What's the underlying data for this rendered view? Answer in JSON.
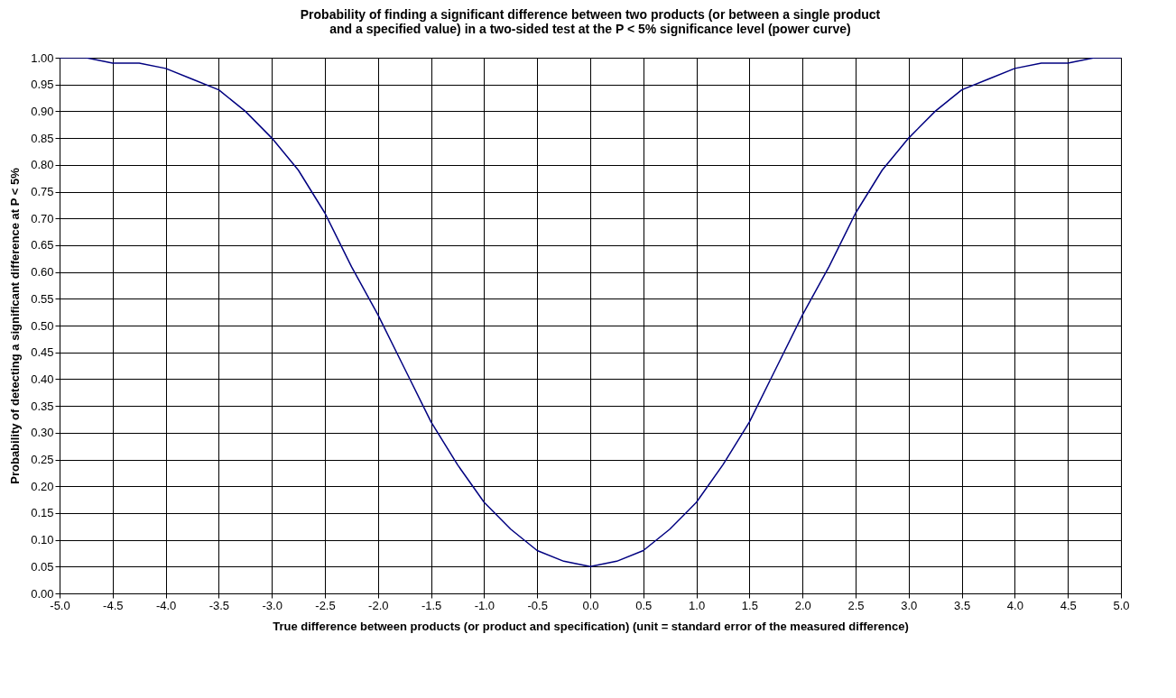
{
  "chart_data": {
    "type": "line",
    "title": "Probability of finding a significant difference between two products (or between a single product\nand a specified value) in a two-sided test at the P < 5% significance level (power curve)",
    "xlabel": "True difference between products (or product and specification) (unit = standard error of the measured difference)",
    "ylabel": "Probability of detecting a significant difference at P < 5%",
    "x": [
      -5,
      -4.75,
      -4.5,
      -4.25,
      -4,
      -3.75,
      -3.5,
      -3.25,
      -3,
      -2.75,
      -2.5,
      -2.25,
      -2,
      -1.75,
      -1.5,
      -1.25,
      -1,
      -0.75,
      -0.5,
      -0.25,
      0,
      0.25,
      0.5,
      0.75,
      1,
      1.25,
      1.5,
      1.75,
      2,
      2.25,
      2.5,
      2.75,
      3,
      3.25,
      3.5,
      3.75,
      4,
      4.25,
      4.5,
      4.75,
      5
    ],
    "series": [
      {
        "color": "#000080",
        "values": [
          1.0,
          1.0,
          0.99,
          0.99,
          0.98,
          0.96,
          0.94,
          0.9,
          0.85,
          0.79,
          0.71,
          0.61,
          0.52,
          0.42,
          0.32,
          0.24,
          0.17,
          0.12,
          0.08,
          0.06,
          0.05,
          0.06,
          0.08,
          0.12,
          0.17,
          0.24,
          0.32,
          0.42,
          0.52,
          0.61,
          0.71,
          0.79,
          0.85,
          0.9,
          0.94,
          0.96,
          0.98,
          0.99,
          0.99,
          1.0,
          1.0
        ]
      }
    ],
    "xlim": [
      -5,
      5
    ],
    "xticks": [
      {
        "value": -5,
        "label": "-5.0"
      },
      {
        "value": -4.5,
        "label": "-4.5"
      },
      {
        "value": -4,
        "label": "-4.0"
      },
      {
        "value": -3.5,
        "label": "-3.5"
      },
      {
        "value": -3,
        "label": "-3.0"
      },
      {
        "value": -2.5,
        "label": "-2.5"
      },
      {
        "value": -2,
        "label": "-2.0"
      },
      {
        "value": -1.5,
        "label": "-1.5"
      },
      {
        "value": -1,
        "label": "-1.0"
      },
      {
        "value": -0.5,
        "label": "-0.5"
      },
      {
        "value": 0,
        "label": "0.0"
      },
      {
        "value": 0.5,
        "label": "0.5"
      },
      {
        "value": 1,
        "label": "1.0"
      },
      {
        "value": 1.5,
        "label": "1.5"
      },
      {
        "value": 2,
        "label": "2.0"
      },
      {
        "value": 2.5,
        "label": "2.5"
      },
      {
        "value": 3,
        "label": "3.0"
      },
      {
        "value": 3.5,
        "label": "3.5"
      },
      {
        "value": 4,
        "label": "4.0"
      },
      {
        "value": 4.5,
        "label": "4.5"
      },
      {
        "value": 5,
        "label": "5.0"
      }
    ],
    "ylim": [
      0,
      1
    ],
    "yticks": [
      {
        "value": 0,
        "label": "0.00"
      },
      {
        "value": 0.05,
        "label": "0.05"
      },
      {
        "value": 0.1,
        "label": "0.10"
      },
      {
        "value": 0.15,
        "label": "0.15"
      },
      {
        "value": 0.2,
        "label": "0.20"
      },
      {
        "value": 0.25,
        "label": "0.25"
      },
      {
        "value": 0.3,
        "label": "0.30"
      },
      {
        "value": 0.35,
        "label": "0.35"
      },
      {
        "value": 0.4,
        "label": "0.40"
      },
      {
        "value": 0.45,
        "label": "0.45"
      },
      {
        "value": 0.5,
        "label": "0.50"
      },
      {
        "value": 0.55,
        "label": "0.55"
      },
      {
        "value": 0.6,
        "label": "0.60"
      },
      {
        "value": 0.65,
        "label": "0.65"
      },
      {
        "value": 0.7,
        "label": "0.70"
      },
      {
        "value": 0.75,
        "label": "0.75"
      },
      {
        "value": 0.8,
        "label": "0.80"
      },
      {
        "value": 0.85,
        "label": "0.85"
      },
      {
        "value": 0.9,
        "label": "0.90"
      },
      {
        "value": 0.95,
        "label": "0.95"
      },
      {
        "value": 1,
        "label": "1.00"
      }
    ],
    "grid": true,
    "marker": "none",
    "line_style": "solid"
  }
}
